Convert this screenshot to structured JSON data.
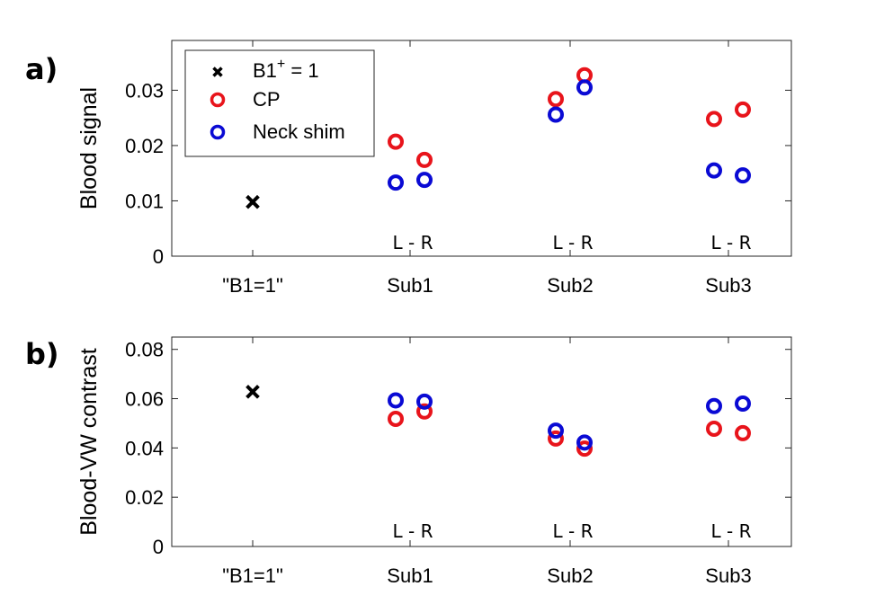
{
  "chart_data": [
    {
      "type": "scatter",
      "panel_label": "a)",
      "ylabel": "Blood signal",
      "ylim": [
        0,
        0.039
      ],
      "yticks": [
        0,
        0.01,
        0.02,
        0.03
      ],
      "ytick_labels": [
        "0",
        "0.01",
        "0.02",
        "0.03"
      ],
      "categories": [
        "\"B1=1\"",
        "Sub1",
        "Sub2",
        "Sub3"
      ],
      "lr_label": "L - R",
      "legend": {
        "location": "top-left",
        "entries": [
          {
            "label": "B1",
            "sup": "+",
            "suffix": " = 1",
            "marker": "x",
            "color": "#000000"
          },
          {
            "label": "CP",
            "marker": "o",
            "color": "#e8141b"
          },
          {
            "label": "Neck shim",
            "marker": "o",
            "color": "#0a0ad4"
          }
        ]
      },
      "series": [
        {
          "name": "B1+ = 1",
          "marker": "x",
          "color": "#000000",
          "points": [
            {
              "category": 0,
              "offset": 0,
              "y": 0.0098
            }
          ]
        },
        {
          "name": "CP",
          "marker": "o",
          "color": "#e8141b",
          "points": [
            {
              "category": 1,
              "side": "L",
              "y": 0.0207
            },
            {
              "category": 1,
              "side": "R",
              "y": 0.0174
            },
            {
              "category": 2,
              "side": "L",
              "y": 0.0284
            },
            {
              "category": 2,
              "side": "R",
              "y": 0.0327
            },
            {
              "category": 3,
              "side": "L",
              "y": 0.0248
            },
            {
              "category": 3,
              "side": "R",
              "y": 0.0265
            }
          ]
        },
        {
          "name": "Neck shim",
          "marker": "o",
          "color": "#0a0ad4",
          "points": [
            {
              "category": 1,
              "side": "L",
              "y": 0.0133
            },
            {
              "category": 1,
              "side": "R",
              "y": 0.0138
            },
            {
              "category": 2,
              "side": "L",
              "y": 0.0256
            },
            {
              "category": 2,
              "side": "R",
              "y": 0.0305
            },
            {
              "category": 3,
              "side": "L",
              "y": 0.0155
            },
            {
              "category": 3,
              "side": "R",
              "y": 0.0146
            }
          ]
        }
      ]
    },
    {
      "type": "scatter",
      "panel_label": "b)",
      "ylabel": "Blood-VW contrast",
      "ylim": [
        0,
        0.085
      ],
      "yticks": [
        0,
        0.02,
        0.04,
        0.06,
        0.08
      ],
      "ytick_labels": [
        "0",
        "0.02",
        "0.04",
        "0.06",
        "0.08"
      ],
      "categories": [
        "\"B1=1\"",
        "Sub1",
        "Sub2",
        "Sub3"
      ],
      "lr_label": "L - R",
      "series": [
        {
          "name": "B1+ = 1",
          "marker": "x",
          "color": "#000000",
          "points": [
            {
              "category": 0,
              "offset": 0,
              "y": 0.0628
            }
          ]
        },
        {
          "name": "CP",
          "marker": "o",
          "color": "#e8141b",
          "points": [
            {
              "category": 1,
              "side": "L",
              "y": 0.0518
            },
            {
              "category": 1,
              "side": "R",
              "y": 0.0548
            },
            {
              "category": 2,
              "side": "L",
              "y": 0.0438
            },
            {
              "category": 2,
              "side": "R",
              "y": 0.0397
            },
            {
              "category": 3,
              "side": "L",
              "y": 0.0478
            },
            {
              "category": 3,
              "side": "R",
              "y": 0.046
            }
          ]
        },
        {
          "name": "Neck shim",
          "marker": "o",
          "color": "#0a0ad4",
          "points": [
            {
              "category": 1,
              "side": "L",
              "y": 0.0593
            },
            {
              "category": 1,
              "side": "R",
              "y": 0.0588
            },
            {
              "category": 2,
              "side": "L",
              "y": 0.047
            },
            {
              "category": 2,
              "side": "R",
              "y": 0.0422
            },
            {
              "category": 3,
              "side": "L",
              "y": 0.057
            },
            {
              "category": 3,
              "side": "R",
              "y": 0.058
            }
          ]
        }
      ]
    }
  ]
}
